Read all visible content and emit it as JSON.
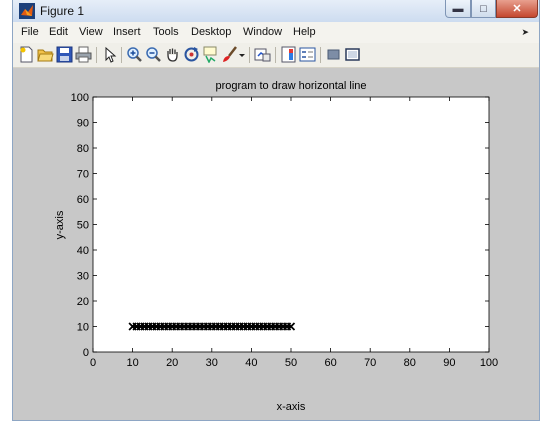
{
  "window": {
    "title": "Figure 1"
  },
  "menu": [
    "File",
    "Edit",
    "View",
    "Insert",
    "Tools",
    "Desktop",
    "Window",
    "Help"
  ],
  "toolbar": {
    "icons": [
      "new-figure-icon",
      "open-file-icon",
      "save-icon",
      "print-icon",
      "edit-plot-arrow-icon",
      "zoom-in-icon",
      "zoom-out-icon",
      "pan-hand-icon",
      "rotate-3d-icon",
      "data-cursor-icon",
      "brush-icon",
      "brush-dropdown-icon",
      "link-plot-icon",
      "insert-colorbar-icon",
      "insert-legend-icon",
      "hide-plot-tools-icon",
      "show-plot-tools-icon"
    ]
  },
  "colors": {
    "line": "#000000",
    "axes_bg": "#ffffff",
    "figure_bg": "#c8c8c8"
  },
  "chart_data": {
    "type": "line",
    "title": "program to draw horizontal line",
    "xlabel": "x-axis",
    "ylabel": "y-axis",
    "xlim": [
      0,
      100
    ],
    "ylim": [
      0,
      100
    ],
    "xticks": [
      0,
      10,
      20,
      30,
      40,
      50,
      60,
      70,
      80,
      90,
      100
    ],
    "yticks": [
      0,
      10,
      20,
      30,
      40,
      50,
      60,
      70,
      80,
      90,
      100
    ],
    "grid": false,
    "marker": "x",
    "series": [
      {
        "x": [
          10,
          11,
          12,
          13,
          14,
          15,
          16,
          17,
          18,
          19,
          20,
          21,
          22,
          23,
          24,
          25,
          26,
          27,
          28,
          29,
          30,
          31,
          32,
          33,
          34,
          35,
          36,
          37,
          38,
          39,
          40,
          41,
          42,
          43,
          44,
          45,
          46,
          47,
          48,
          49,
          50
        ],
        "y": [
          10,
          10,
          10,
          10,
          10,
          10,
          10,
          10,
          10,
          10,
          10,
          10,
          10,
          10,
          10,
          10,
          10,
          10,
          10,
          10,
          10,
          10,
          10,
          10,
          10,
          10,
          10,
          10,
          10,
          10,
          10,
          10,
          10,
          10,
          10,
          10,
          10,
          10,
          10,
          10,
          10
        ]
      }
    ]
  }
}
